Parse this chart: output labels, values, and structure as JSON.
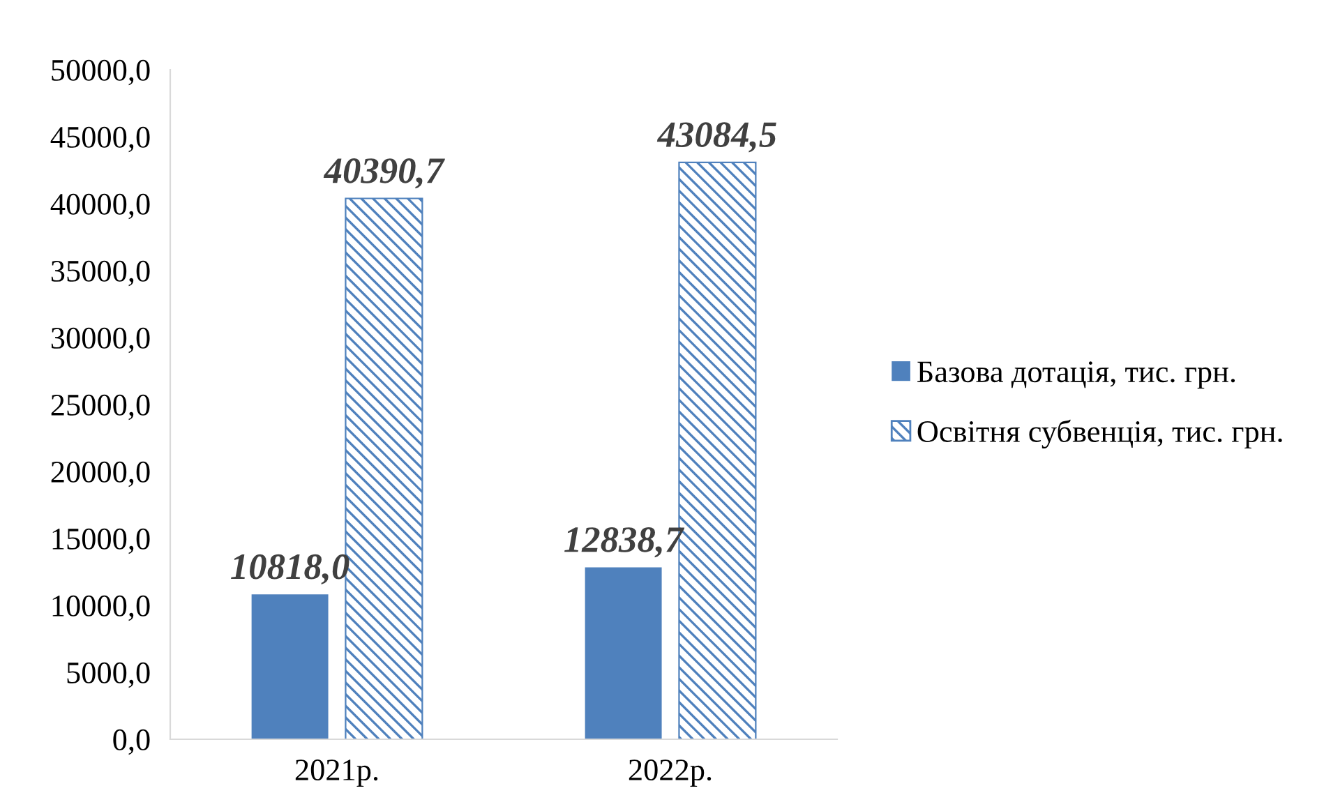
{
  "chart_data": {
    "type": "bar",
    "categories": [
      "2021р.",
      "2022р."
    ],
    "series": [
      {
        "name": "Базова дотація, тис. грн.",
        "color": "#4f81bd",
        "values": [
          10818.0,
          12838.7
        ],
        "value_labels": [
          "10818,0",
          "12838,7"
        ]
      },
      {
        "name": "Освітня субвенція, тис. грн.",
        "color": "#4f81bd",
        "values": [
          40390.7,
          43084.5
        ],
        "value_labels": [
          "40390,7",
          "43084,5"
        ]
      }
    ],
    "ylim": [
      0,
      50000
    ],
    "yticks": [
      {
        "value": 0,
        "label": "0,0"
      },
      {
        "value": 5000,
        "label": "5000,0"
      },
      {
        "value": 10000,
        "label": "10000,0"
      },
      {
        "value": 15000,
        "label": "15000,0"
      },
      {
        "value": 20000,
        "label": "20000,0"
      },
      {
        "value": 25000,
        "label": "25000,0"
      },
      {
        "value": 30000,
        "label": "30000,0"
      },
      {
        "value": 35000,
        "label": "35000,0"
      },
      {
        "value": 40000,
        "label": "40000,0"
      },
      {
        "value": 45000,
        "label": "45000,0"
      },
      {
        "value": 50000,
        "label": "50000,0"
      }
    ],
    "grid": false,
    "legend": "right"
  }
}
